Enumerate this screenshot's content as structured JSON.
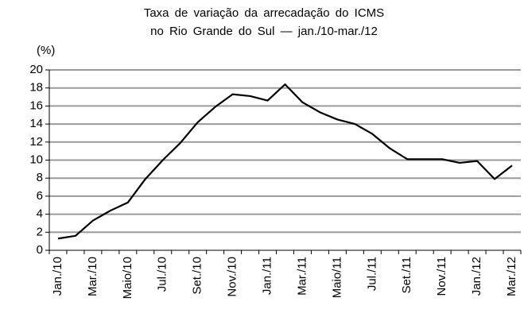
{
  "chart_data": {
    "type": "line",
    "title": "Taxa de variação da arrecadação do ICMS",
    "subtitle": "no Rio Grande do Sul — jan./10-mar./12",
    "ylabel": "(%)",
    "categories": [
      "Jan./10",
      null,
      "Mar./10",
      null,
      "Maio/10",
      null,
      "Jul./10",
      null,
      "Set./10",
      null,
      "Nov./10",
      null,
      "Jan./11",
      null,
      "Mar./11",
      null,
      "Maio/11",
      null,
      "Jul./11",
      null,
      "Set./11",
      null,
      "Nov./11",
      null,
      "Jan./12",
      null,
      "Mar./12"
    ],
    "values": [
      1.3,
      1.6,
      3.3,
      4.4,
      5.3,
      7.9,
      10.0,
      11.9,
      14.2,
      15.9,
      17.3,
      17.1,
      16.6,
      18.4,
      16.4,
      15.3,
      14.5,
      14.0,
      12.9,
      11.3,
      10.1,
      10.1,
      10.1,
      9.7,
      9.9,
      7.9,
      9.4
    ],
    "color": "#000000",
    "ylim": [
      0,
      20
    ],
    "yticks": [
      0,
      2,
      4,
      6,
      8,
      10,
      12,
      14,
      16,
      18,
      20
    ],
    "grid": true
  }
}
